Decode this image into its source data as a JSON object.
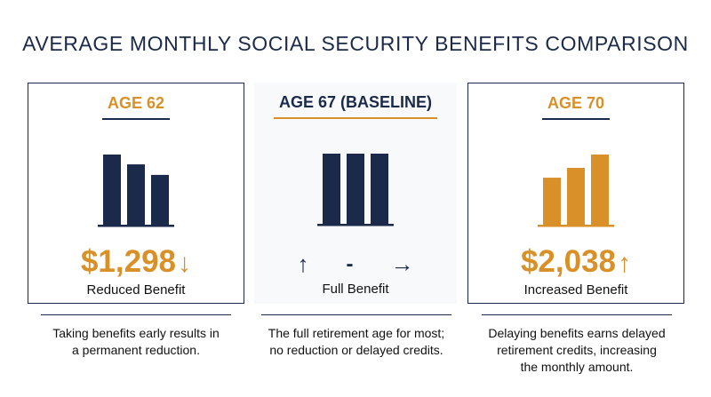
{
  "title": "AVERAGE MONTHLY SOCIAL SECURITY BENEFITS COMPARISON",
  "colors": {
    "navy": "#1b2a4a",
    "gold": "#d99028"
  },
  "chart_data": {
    "type": "bar",
    "title": "AVERAGE MONTHLY SOCIAL SECURITY BENEFITS COMPARISON",
    "categories": [
      "AGE 62",
      "AGE 67 (BASELINE)",
      "AGE 70"
    ],
    "panels": [
      {
        "heading": "AGE 62",
        "amount": "$1,298",
        "amount_arrow": "↓",
        "label": "Reduced Benefit",
        "description": [
          "Taking benefits early results in",
          "a permanent reduction."
        ],
        "bar_color": "#1b2a4a",
        "bar_levels": [
          1.0,
          0.86,
          0.71
        ]
      },
      {
        "heading": "AGE 67 (BASELINE)",
        "amount": "",
        "arrows": [
          "↑",
          "-",
          "→"
        ],
        "label": "Full Benefit",
        "description": [
          "The full retirement age for most;",
          "no reduction or delayed credits."
        ],
        "bar_color": "#1b2a4a",
        "bar_levels": [
          1.0,
          1.0,
          1.0
        ]
      },
      {
        "heading": "AGE 70",
        "amount": "$2,038",
        "amount_arrow": "↑",
        "label": "Increased Benefit",
        "description": [
          "Delaying benefits earns delayed",
          "retirement credits, increasing",
          "the monthly amount."
        ],
        "bar_color": "#d99028",
        "bar_levels": [
          0.67,
          0.81,
          1.0
        ]
      }
    ]
  }
}
